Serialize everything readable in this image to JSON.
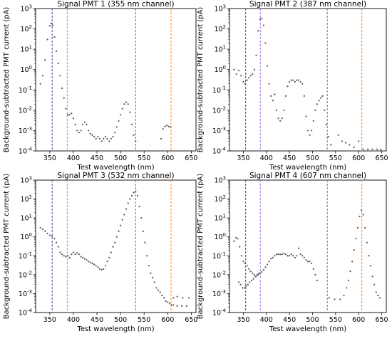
{
  "chart_data": [
    {
      "type": "scatter",
      "title": "Signal PMT 1 (355 nm channel)",
      "xlabel": "Test wavelength (nm)",
      "ylabel": "Background-subtracted PMT current (pA)",
      "yscale": "log",
      "xlim": [
        320,
        660
      ],
      "ylim": [
        0.0001,
        1000
      ],
      "xticks": [
        350,
        400,
        450,
        500,
        550,
        600,
        650
      ],
      "yticks": [
        "10^-4",
        "10^-3",
        "10^-2",
        "10^-1",
        "10^0",
        "10^1",
        "10^2",
        "10^3"
      ],
      "vlines": [
        {
          "x": 355,
          "color": "#6a2c9c"
        },
        {
          "x": 387,
          "color": "#b07ad8"
        },
        {
          "x": 532,
          "color": "#2ca02c"
        },
        {
          "x": 607,
          "color": "#ff7f0e"
        }
      ],
      "marker_color": "#555555",
      "points": [
        [
          330,
          0.2
        ],
        [
          335,
          0.5
        ],
        [
          340,
          3
        ],
        [
          345,
          30
        ],
        [
          350,
          140
        ],
        [
          353,
          190
        ],
        [
          356,
          150
        ],
        [
          360,
          40
        ],
        [
          364,
          8
        ],
        [
          368,
          2
        ],
        [
          372,
          0.5
        ],
        [
          376,
          0.12
        ],
        [
          380,
          0.04
        ],
        [
          384,
          0.012
        ],
        [
          388,
          0.006
        ],
        [
          392,
          0.006
        ],
        [
          396,
          0.007
        ],
        [
          400,
          0.004
        ],
        [
          404,
          0.002
        ],
        [
          408,
          0.001
        ],
        [
          412,
          0.0008
        ],
        [
          416,
          0.001
        ],
        [
          420,
          0.002
        ],
        [
          424,
          0.0025
        ],
        [
          428,
          0.002
        ],
        [
          432,
          0.001
        ],
        [
          436,
          0.0007
        ],
        [
          440,
          0.0006
        ],
        [
          444,
          0.0005
        ],
        [
          448,
          0.0004
        ],
        [
          452,
          0.0005
        ],
        [
          456,
          0.0004
        ],
        [
          460,
          0.0003
        ],
        [
          464,
          0.0004
        ],
        [
          468,
          0.0005
        ],
        [
          472,
          0.0004
        ],
        [
          476,
          0.0003
        ],
        [
          480,
          0.0004
        ],
        [
          484,
          0.0005
        ],
        [
          488,
          0.0008
        ],
        [
          492,
          0.0015
        ],
        [
          496,
          0.003
        ],
        [
          500,
          0.006
        ],
        [
          504,
          0.012
        ],
        [
          508,
          0.02
        ],
        [
          512,
          0.025
        ],
        [
          516,
          0.02
        ],
        [
          520,
          0.008
        ],
        [
          524,
          0.002
        ],
        [
          528,
          0.0006
        ],
        [
          532,
          0.0003
        ],
        [
          586,
          0.0004
        ],
        [
          590,
          0.0012
        ],
        [
          594,
          0.0016
        ],
        [
          598,
          0.0018
        ],
        [
          602,
          0.0016
        ],
        [
          606,
          0.0015
        ]
      ]
    },
    {
      "type": "scatter",
      "title": "Signal PMT 2 (387 nm channel)",
      "xlabel": "Test wavelength (nm)",
      "ylabel": "Background-subtracted PMT current (pA)",
      "yscale": "log",
      "xlim": [
        320,
        660
      ],
      "ylim": [
        0.0001,
        1000
      ],
      "xticks": [
        350,
        400,
        450,
        500,
        550,
        600,
        650
      ],
      "yticks": [
        "10^-4",
        "10^-3",
        "10^-2",
        "10^-1",
        "10^0",
        "10^1",
        "10^2",
        "10^3"
      ],
      "vlines": [
        {
          "x": 355,
          "color": "#6a2c9c"
        },
        {
          "x": 387,
          "color": "#b07ad8"
        },
        {
          "x": 532,
          "color": "#2ca02c"
        },
        {
          "x": 607,
          "color": "#ff7f0e"
        }
      ],
      "marker_color": "#555555",
      "points": [
        [
          330,
          1
        ],
        [
          335,
          0.6
        ],
        [
          340,
          0.9
        ],
        [
          345,
          0.5
        ],
        [
          350,
          0.25
        ],
        [
          354,
          0.2
        ],
        [
          358,
          0.3
        ],
        [
          362,
          0.4
        ],
        [
          366,
          0.5
        ],
        [
          370,
          0.6
        ],
        [
          374,
          1
        ],
        [
          378,
          5
        ],
        [
          382,
          80
        ],
        [
          386,
          300
        ],
        [
          390,
          320
        ],
        [
          394,
          150
        ],
        [
          398,
          20
        ],
        [
          402,
          1.5
        ],
        [
          406,
          0.2
        ],
        [
          410,
          0.05
        ],
        [
          414,
          0.03
        ],
        [
          418,
          0.06
        ],
        [
          422,
          0.01
        ],
        [
          426,
          0.004
        ],
        [
          430,
          0.003
        ],
        [
          434,
          0.004
        ],
        [
          438,
          0.01
        ],
        [
          442,
          0.05
        ],
        [
          446,
          0.15
        ],
        [
          450,
          0.25
        ],
        [
          454,
          0.3
        ],
        [
          458,
          0.3
        ],
        [
          462,
          0.25
        ],
        [
          466,
          0.3
        ],
        [
          470,
          0.3
        ],
        [
          474,
          0.25
        ],
        [
          478,
          0.2
        ],
        [
          482,
          0.05
        ],
        [
          486,
          0.005
        ],
        [
          490,
          0.001
        ],
        [
          494,
          0.0006
        ],
        [
          498,
          0.001
        ],
        [
          502,
          0.003
        ],
        [
          506,
          0.01
        ],
        [
          510,
          0.02
        ],
        [
          514,
          0.03
        ],
        [
          518,
          0.04
        ],
        [
          522,
          0.05
        ],
        [
          526,
          0.01
        ],
        [
          530,
          0.002
        ],
        [
          534,
          0.0005
        ],
        [
          540,
          0.0002
        ],
        [
          556,
          0.0006
        ],
        [
          564,
          0.0003
        ],
        [
          572,
          0.00025
        ],
        [
          580,
          0.0002
        ],
        [
          590,
          0.00015
        ],
        [
          600,
          0.0003
        ],
        [
          610,
          0.00012
        ],
        [
          620,
          0.00012
        ],
        [
          630,
          0.00012
        ],
        [
          640,
          0.00012
        ],
        [
          648,
          0.00012
        ]
      ]
    },
    {
      "type": "scatter",
      "title": "Signal PMT 3 (532 nm channel)",
      "xlabel": "Test wavelength (nm)",
      "ylabel": "Background-subtracted PMT current (pA)",
      "yscale": "log",
      "xlim": [
        320,
        660
      ],
      "ylim": [
        0.0001,
        1000
      ],
      "xticks": [
        350,
        400,
        450,
        500,
        550,
        600,
        650
      ],
      "yticks": [
        "10^-4",
        "10^-3",
        "10^-2",
        "10^-1",
        "10^0",
        "10^1",
        "10^2",
        "10^3"
      ],
      "vlines": [
        {
          "x": 355,
          "color": "#6a2c9c"
        },
        {
          "x": 387,
          "color": "#b07ad8"
        },
        {
          "x": 532,
          "color": "#2ca02c"
        },
        {
          "x": 607,
          "color": "#ff7f0e"
        }
      ],
      "marker_color": "#555555",
      "points": [
        [
          330,
          3
        ],
        [
          335,
          2.5
        ],
        [
          340,
          2
        ],
        [
          345,
          1.5
        ],
        [
          350,
          1.2
        ],
        [
          355,
          1.1
        ],
        [
          360,
          0.8
        ],
        [
          364,
          0.5
        ],
        [
          368,
          0.3
        ],
        [
          372,
          0.15
        ],
        [
          376,
          0.12
        ],
        [
          380,
          0.1
        ],
        [
          384,
          0.09
        ],
        [
          388,
          0.1
        ],
        [
          392,
          0.08
        ],
        [
          396,
          0.12
        ],
        [
          400,
          0.15
        ],
        [
          404,
          0.12
        ],
        [
          408,
          0.14
        ],
        [
          412,
          0.12
        ],
        [
          416,
          0.09
        ],
        [
          420,
          0.08
        ],
        [
          424,
          0.07
        ],
        [
          428,
          0.06
        ],
        [
          432,
          0.05
        ],
        [
          436,
          0.045
        ],
        [
          440,
          0.04
        ],
        [
          444,
          0.035
        ],
        [
          448,
          0.03
        ],
        [
          452,
          0.025
        ],
        [
          456,
          0.02
        ],
        [
          460,
          0.018
        ],
        [
          464,
          0.02
        ],
        [
          468,
          0.03
        ],
        [
          472,
          0.05
        ],
        [
          476,
          0.08
        ],
        [
          480,
          0.15
        ],
        [
          484,
          0.3
        ],
        [
          488,
          0.5
        ],
        [
          492,
          1
        ],
        [
          496,
          2
        ],
        [
          500,
          4
        ],
        [
          504,
          8
        ],
        [
          508,
          15
        ],
        [
          512,
          30
        ],
        [
          516,
          60
        ],
        [
          520,
          100
        ],
        [
          524,
          150
        ],
        [
          528,
          220
        ],
        [
          532,
          260
        ],
        [
          536,
          150
        ],
        [
          540,
          40
        ],
        [
          544,
          10
        ],
        [
          548,
          2
        ],
        [
          552,
          0.5
        ],
        [
          556,
          0.1
        ],
        [
          560,
          0.03
        ],
        [
          564,
          0.012
        ],
        [
          568,
          0.007
        ],
        [
          572,
          0.004
        ],
        [
          576,
          0.002
        ],
        [
          580,
          0.0015
        ],
        [
          584,
          0.0012
        ],
        [
          588,
          0.0008
        ],
        [
          592,
          0.0006
        ],
        [
          596,
          0.0004
        ],
        [
          600,
          0.00035
        ],
        [
          604,
          0.0003
        ],
        [
          608,
          0.00025
        ],
        [
          612,
          0.00025
        ],
        [
          620,
          0.00022
        ],
        [
          630,
          0.00022
        ],
        [
          640,
          0.00022
        ],
        [
          645,
          0.0006
        ],
        [
          632,
          0.0006
        ],
        [
          620,
          0.0007
        ],
        [
          612,
          0.0006
        ]
      ]
    },
    {
      "type": "scatter",
      "title": "Signal PMT 4 (607 nm channel)",
      "xlabel": "Test wavelength (nm)",
      "ylabel": "Background-subtracted PMT current (pA)",
      "yscale": "log",
      "xlim": [
        320,
        660
      ],
      "ylim": [
        0.0001,
        1000
      ],
      "xticks": [
        350,
        400,
        450,
        500,
        550,
        600,
        650
      ],
      "yticks": [
        "10^-4",
        "10^-3",
        "10^-2",
        "10^-1",
        "10^0",
        "10^1",
        "10^2",
        "10^3"
      ],
      "vlines": [
        {
          "x": 355,
          "color": "#6a2c9c"
        },
        {
          "x": 387,
          "color": "#b07ad8"
        },
        {
          "x": 532,
          "color": "#2ca02c"
        },
        {
          "x": 607,
          "color": "#ff7f0e"
        }
      ],
      "marker_color": "#555555",
      "points": [
        [
          330,
          0.6
        ],
        [
          334,
          0.9
        ],
        [
          338,
          0.8
        ],
        [
          342,
          0.3
        ],
        [
          346,
          0.1
        ],
        [
          350,
          0.05
        ],
        [
          354,
          0.04
        ],
        [
          358,
          0.03
        ],
        [
          362,
          0.02
        ],
        [
          366,
          0.015
        ],
        [
          370,
          0.012
        ],
        [
          374,
          0.01
        ],
        [
          378,
          0.008
        ],
        [
          382,
          0.01
        ],
        [
          386,
          0.012
        ],
        [
          390,
          0.014
        ],
        [
          394,
          0.018
        ],
        [
          398,
          0.025
        ],
        [
          402,
          0.035
        ],
        [
          406,
          0.05
        ],
        [
          410,
          0.07
        ],
        [
          414,
          0.08
        ],
        [
          418,
          0.1
        ],
        [
          422,
          0.12
        ],
        [
          426,
          0.12
        ],
        [
          430,
          0.12
        ],
        [
          434,
          0.12
        ],
        [
          438,
          0.13
        ],
        [
          442,
          0.12
        ],
        [
          446,
          0.1
        ],
        [
          450,
          0.1
        ],
        [
          454,
          0.12
        ],
        [
          458,
          0.1
        ],
        [
          462,
          0.08
        ],
        [
          466,
          0.1
        ],
        [
          470,
          0.25
        ],
        [
          474,
          0.12
        ],
        [
          478,
          0.1
        ],
        [
          482,
          0.08
        ],
        [
          486,
          0.06
        ],
        [
          490,
          0.05
        ],
        [
          494,
          0.05
        ],
        [
          498,
          0.04
        ],
        [
          502,
          0.02
        ],
        [
          506,
          0.01
        ],
        [
          510,
          0.005
        ],
        [
          340,
          0.004
        ],
        [
          344,
          0.003
        ],
        [
          348,
          0.002
        ],
        [
          352,
          0.002
        ],
        [
          356,
          0.0025
        ],
        [
          360,
          0.003
        ],
        [
          364,
          0.004
        ],
        [
          368,
          0.005
        ],
        [
          372,
          0.006
        ],
        [
          376,
          0.008
        ],
        [
          380,
          0.01
        ],
        [
          384,
          0.012
        ],
        [
          536,
          0.0006
        ],
        [
          548,
          0.0005
        ],
        [
          560,
          0.0005
        ],
        [
          568,
          0.0008
        ],
        [
          574,
          0.002
        ],
        [
          578,
          0.005
        ],
        [
          582,
          0.015
        ],
        [
          586,
          0.05
        ],
        [
          590,
          0.2
        ],
        [
          594,
          0.8
        ],
        [
          598,
          3
        ],
        [
          602,
          12
        ],
        [
          606,
          25
        ],
        [
          610,
          15
        ],
        [
          614,
          3
        ],
        [
          618,
          0.5
        ],
        [
          622,
          0.1
        ],
        [
          626,
          0.03
        ],
        [
          630,
          0.008
        ],
        [
          634,
          0.003
        ],
        [
          638,
          0.0012
        ],
        [
          642,
          0.0008
        ],
        [
          646,
          0.0006
        ]
      ]
    }
  ]
}
